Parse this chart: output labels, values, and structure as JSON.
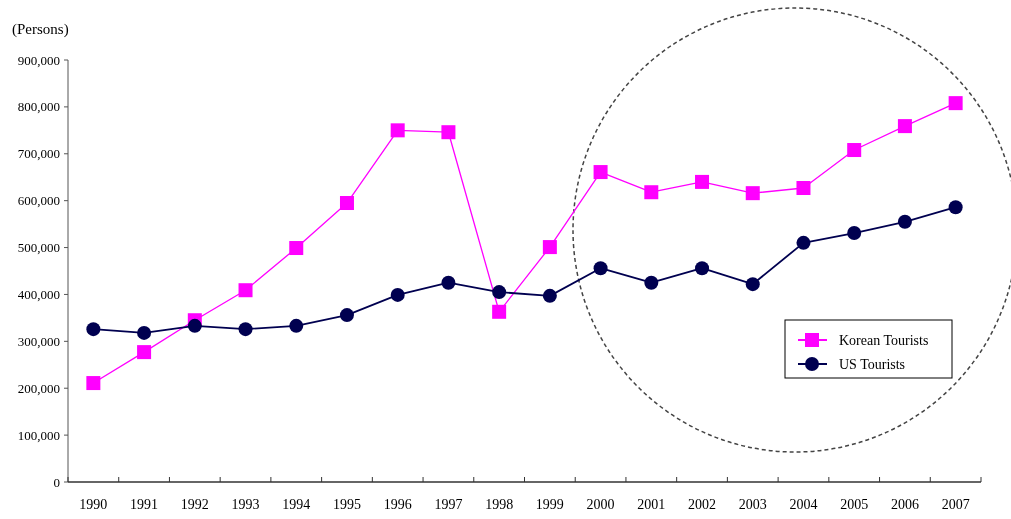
{
  "chart_data": {
    "type": "line",
    "ylabel": "(Persons)",
    "categories": [
      "1990",
      "1991",
      "1992",
      "1993",
      "1994",
      "1995",
      "1996",
      "1997",
      "1998",
      "1999",
      "2000",
      "2001",
      "2002",
      "2003",
      "2004",
      "2005",
      "2006",
      "2007"
    ],
    "series": [
      {
        "name": "Korean Tourists",
        "color": "#ff00ff",
        "marker": "square",
        "values": [
          211000,
          277000,
          345000,
          409000,
          499000,
          595000,
          750000,
          746000,
          363000,
          501000,
          661000,
          618000,
          640000,
          616000,
          627000,
          708000,
          759000,
          808000
        ]
      },
      {
        "name": "US Tourists",
        "color": "#000050",
        "marker": "circle",
        "values": [
          326000,
          318000,
          333000,
          326000,
          333000,
          356000,
          399000,
          425000,
          405000,
          397000,
          456000,
          425000,
          456000,
          422000,
          510000,
          531000,
          555000,
          586000
        ]
      }
    ],
    "ylim": [
      0,
      900000
    ],
    "yticks": [
      0,
      {
        "value": 100000,
        "label": "100,000"
      },
      {
        "value": 200000,
        "label": "200,000"
      },
      {
        "value": 300000,
        "label": "300,000"
      },
      {
        "value": 400000,
        "label": "400,000"
      },
      {
        "value": 500000,
        "label": "500,000"
      },
      {
        "value": 600000,
        "label": "600,000"
      },
      {
        "value": 700000,
        "label": "700,000"
      },
      {
        "value": 800000,
        "label": "800,000"
      },
      {
        "value": 900000,
        "label": "900,000"
      }
    ],
    "grid": false,
    "legend": "right",
    "line_style": "solid"
  }
}
